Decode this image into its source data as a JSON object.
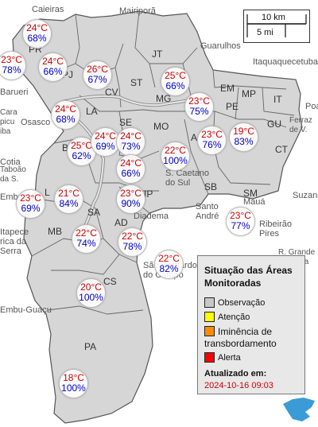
{
  "map": {
    "places": [
      {
        "id": "caieiras",
        "name": "Caieiras"
      },
      {
        "id": "mairipora",
        "name": "Mairiporã"
      },
      {
        "id": "guarulhos",
        "name": "Guarulhos"
      },
      {
        "id": "itaquaquecetuba",
        "name": "Itaquaquecetuba"
      },
      {
        "id": "barueri",
        "name": "Barueri"
      },
      {
        "id": "osasco",
        "name": "Osasco"
      },
      {
        "id": "poa",
        "name": "Poá"
      },
      {
        "id": "ferraz",
        "name": "Ferraz\nde V."
      },
      {
        "id": "carapicuiba",
        "name": "Cara\npicu\niba"
      },
      {
        "id": "cotia",
        "name": "Cotia"
      },
      {
        "id": "taboao",
        "name": "Taboão\nda S."
      },
      {
        "id": "embu",
        "name": "Embu"
      },
      {
        "id": "itapecerica",
        "name": "Itapece\nrica da\nSerra"
      },
      {
        "id": "embuguacu",
        "name": "Embu-Guaçu"
      },
      {
        "id": "scaetano",
        "name": "S. Caetano\ndo Sul"
      },
      {
        "id": "diadema",
        "name": "Diadema"
      },
      {
        "id": "santoandre",
        "name": "Santo\nAndré"
      },
      {
        "id": "maua",
        "name": "Mauá"
      },
      {
        "id": "suzano",
        "name": "Suzano"
      },
      {
        "id": "ribeirao",
        "name": "Ribeirão\nPires"
      },
      {
        "id": "rgrande",
        "name": "R. Grande\nda Serra"
      },
      {
        "id": "sbc",
        "name": "São Bernardo\ndo Campo"
      }
    ],
    "regions": [
      {
        "id": "pr",
        "code": "PR"
      },
      {
        "id": "pj",
        "code": "PJ"
      },
      {
        "id": "jt",
        "code": "JT"
      },
      {
        "id": "cv",
        "code": "CV"
      },
      {
        "id": "st",
        "code": "ST"
      },
      {
        "id": "mg",
        "code": "MG"
      },
      {
        "id": "em",
        "code": "EM"
      },
      {
        "id": "mp",
        "code": "MP"
      },
      {
        "id": "it",
        "code": "IT"
      },
      {
        "id": "pe",
        "code": "PE"
      },
      {
        "id": "gu",
        "code": "GU"
      },
      {
        "id": "la",
        "code": "LA"
      },
      {
        "id": "se",
        "code": "SE"
      },
      {
        "id": "mo",
        "code": "MO"
      },
      {
        "id": "a",
        "code": "A"
      },
      {
        "id": "ct",
        "code": "CT"
      },
      {
        "id": "sb",
        "code": "SB"
      },
      {
        "id": "sm",
        "code": "SM"
      },
      {
        "id": "b",
        "code": "B"
      },
      {
        "id": "l",
        "code": "L"
      },
      {
        "id": "sa",
        "code": "SA"
      },
      {
        "id": "ip",
        "code": "IP"
      },
      {
        "id": "mb",
        "code": "MB"
      },
      {
        "id": "ad",
        "code": "AD"
      },
      {
        "id": "cs",
        "code": "CS"
      },
      {
        "id": "pa",
        "code": "PA"
      }
    ],
    "stations": [
      {
        "id": "perus",
        "temp": "24°C",
        "humidity": "68%"
      },
      {
        "id": "west",
        "temp": "23°C",
        "humidity": "78%"
      },
      {
        "id": "pirituba",
        "temp": "24°C",
        "humidity": "66%"
      },
      {
        "id": "cachoeirinha",
        "temp": "26°C",
        "humidity": "67%"
      },
      {
        "id": "penha",
        "temp": "25°C",
        "humidity": "66%"
      },
      {
        "id": "lapa",
        "temp": "24°C",
        "humidity": "68%"
      },
      {
        "id": "mooca-east",
        "temp": "23°C",
        "humidity": "75%"
      },
      {
        "id": "butanta",
        "temp": "25°C",
        "humidity": "62%"
      },
      {
        "id": "pinheiros",
        "temp": "24°C",
        "humidity": "69%"
      },
      {
        "id": "se",
        "temp": "24°C",
        "humidity": "73%"
      },
      {
        "id": "vila-prudente",
        "temp": "23°C",
        "humidity": "76%"
      },
      {
        "id": "itaquera",
        "temp": "19°C",
        "humidity": "83%"
      },
      {
        "id": "mooca",
        "temp": "22°C",
        "humidity": "100%"
      },
      {
        "id": "ipiranga",
        "temp": "24°C",
        "humidity": "66%"
      },
      {
        "id": "campo-limpo",
        "temp": "21°C",
        "humidity": "84%"
      },
      {
        "id": "m-boi",
        "temp": "23°C",
        "humidity": "69%"
      },
      {
        "id": "santo-amaro",
        "temp": "23°C",
        "humidity": "90%"
      },
      {
        "id": "maua",
        "temp": "23°C",
        "humidity": "77%"
      },
      {
        "id": "capela",
        "temp": "22°C",
        "humidity": "74%"
      },
      {
        "id": "cidade-ademar",
        "temp": "22°C",
        "humidity": "78%"
      },
      {
        "id": "sbc",
        "temp": "22°C",
        "humidity": "82%"
      },
      {
        "id": "cs",
        "temp": "20°C",
        "humidity": "100%"
      },
      {
        "id": "parelheiros",
        "temp": "18°C",
        "humidity": "100%"
      }
    ]
  },
  "scale": {
    "large": "10 km",
    "small": "5 mi"
  },
  "legend": {
    "title": "Situação das Áreas Monitoradas",
    "items": [
      {
        "label": "Observação",
        "color": "#c8c8c8"
      },
      {
        "label": "Atenção",
        "color": "#ffff00"
      },
      {
        "label": "Iminência de transbordamento",
        "color": "#ff8c00"
      },
      {
        "label": "Alerta",
        "color": "#ff0000"
      }
    ],
    "updated_label": "Atualizado em:",
    "updated_value": "2024-10-16 09:03"
  },
  "colors": {
    "district_fill": "#d6d6d6",
    "district_border": "#555555",
    "river": "#e4e4e4",
    "lake": "#3b9bd6"
  }
}
